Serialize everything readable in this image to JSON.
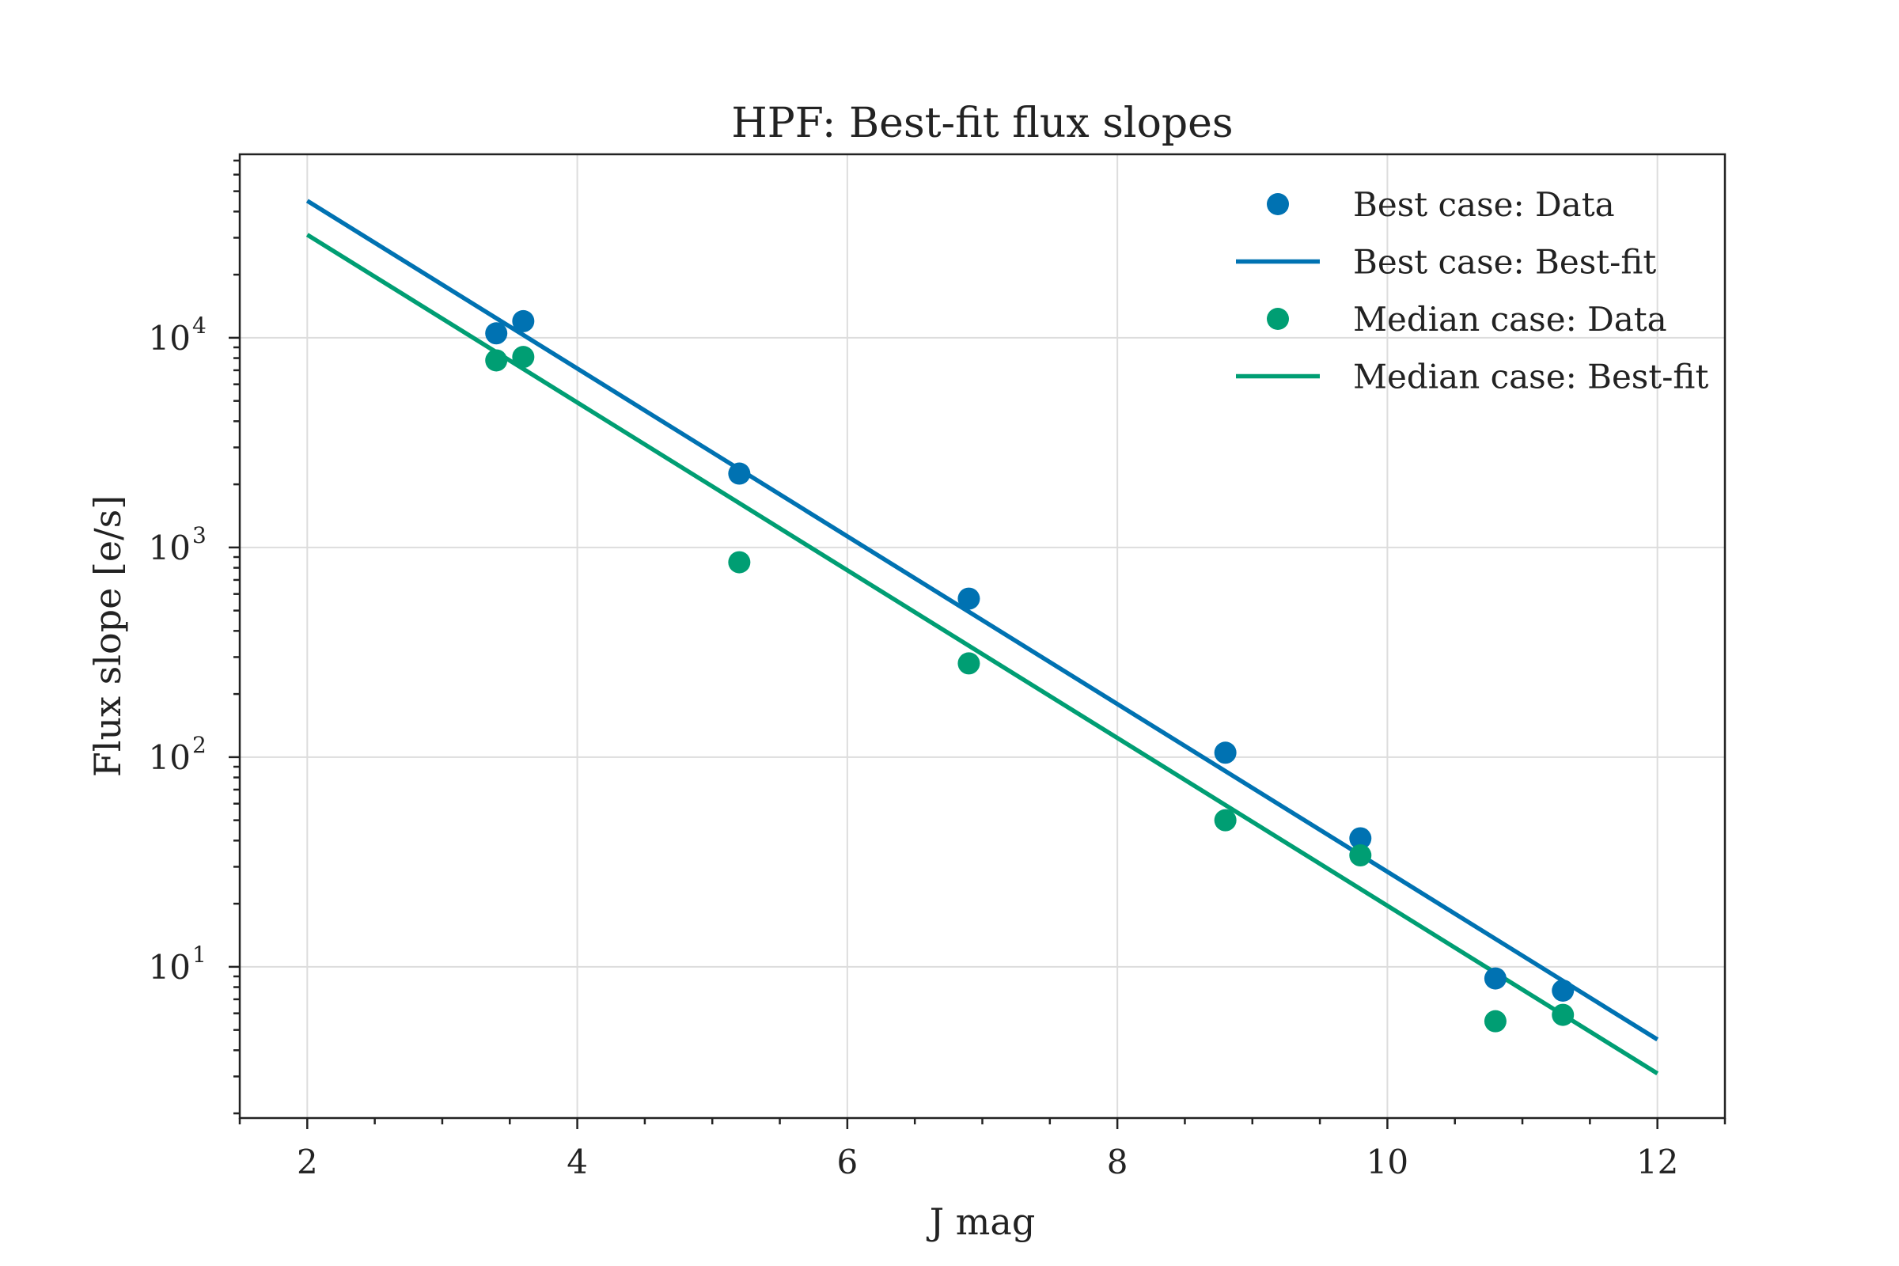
{
  "chart_data": {
    "type": "scatter",
    "title": "HPF: Best-fit flux slopes",
    "xlabel": "J mag",
    "ylabel": "Flux slope [e/s]",
    "xlim": [
      1.5,
      12.5
    ],
    "ylim": [
      1.9,
      75000
    ],
    "yscale": "log",
    "grid": true,
    "legend_position": "top-right",
    "x_ticks": [
      2,
      4,
      6,
      8,
      10,
      12
    ],
    "x_tick_labels": [
      "2",
      "4",
      "6",
      "8",
      "10",
      "12"
    ],
    "y_ticks": [
      10,
      100,
      1000,
      10000
    ],
    "y_tick_labels": [
      {
        "base": "10",
        "exp": "1"
      },
      {
        "base": "10",
        "exp": "2"
      },
      {
        "base": "10",
        "exp": "3"
      },
      {
        "base": "10",
        "exp": "4"
      }
    ],
    "series": [
      {
        "name": "Best case: Data",
        "kind": "scatter",
        "color": "#0072b2",
        "x": [
          3.4,
          3.6,
          5.2,
          6.9,
          8.8,
          9.8,
          10.8,
          11.3
        ],
        "y": [
          10500,
          12000,
          2250,
          570,
          105,
          41,
          8.8,
          7.7
        ]
      },
      {
        "name": "Best case: Best-fit",
        "kind": "line",
        "color": "#0072b2",
        "x": [
          2,
          12
        ],
        "y": [
          45000,
          4.5
        ]
      },
      {
        "name": "Median case: Data",
        "kind": "scatter",
        "color": "#009e73",
        "x": [
          3.4,
          3.6,
          5.2,
          6.9,
          8.8,
          9.8,
          10.8,
          11.3
        ],
        "y": [
          7800,
          8100,
          850,
          280,
          50,
          34,
          5.5,
          5.9
        ]
      },
      {
        "name": "Median case: Best-fit",
        "kind": "line",
        "color": "#009e73",
        "x": [
          2,
          12
        ],
        "y": [
          31000,
          3.1
        ]
      }
    ]
  }
}
